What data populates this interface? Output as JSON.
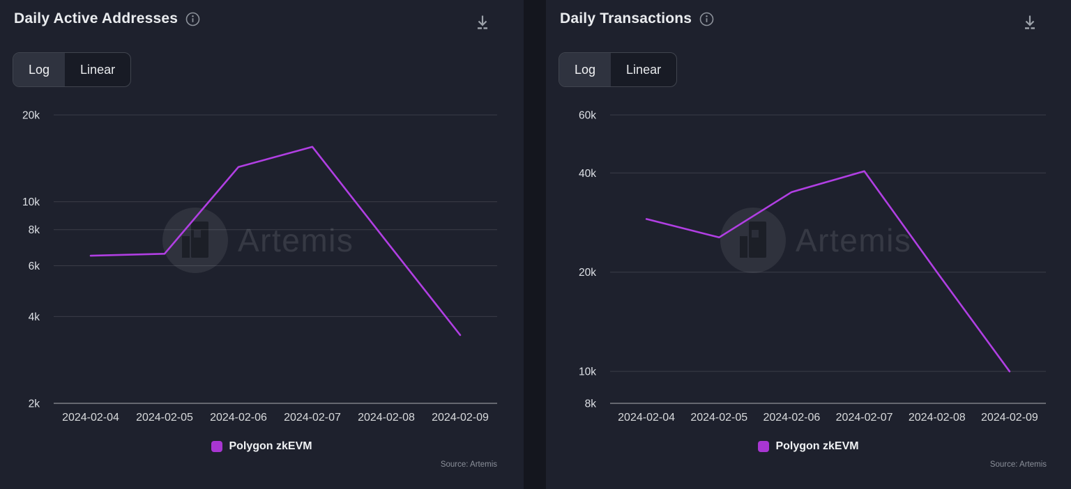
{
  "page": {
    "background": "#14161e",
    "panel_background": "#1e212d",
    "accent_purple": "#b13fe3",
    "legend_swatch_color": "#a836d2",
    "gridline_color": "rgba(255,255,255,0.13)",
    "axis_line_color": "rgba(255,255,255,0.32)"
  },
  "watermark": {
    "text": "Artemis",
    "logo": "artemis-circle-logo"
  },
  "panels": [
    {
      "title": "Daily Active Addresses",
      "toggle": {
        "log": "Log",
        "linear": "Linear",
        "selected": "Log"
      },
      "legend_label": "Polygon zkEVM",
      "legend_color": "#a836d2",
      "source": "Source: Artemis"
    },
    {
      "title": "Daily Transactions",
      "toggle": {
        "log": "Log",
        "linear": "Linear",
        "selected": "Log"
      },
      "legend_label": "Polygon zkEVM",
      "legend_color": "#a836d2",
      "source": "Source: Artemis"
    }
  ],
  "chart_data": [
    {
      "type": "line",
      "title": "Daily Active Addresses",
      "yscale": "log",
      "grid": true,
      "legend_position": "bottom",
      "x": [
        "2024-02-04",
        "2024-02-05",
        "2024-02-06",
        "2024-02-07",
        "2024-02-08",
        "2024-02-09"
      ],
      "series": [
        {
          "name": "Polygon zkEVM",
          "color": "#b13fe3",
          "values": [
            6500,
            6600,
            13200,
            15500,
            7300,
            3450
          ]
        }
      ],
      "yticks": [
        {
          "label": "20k",
          "value": 20000
        },
        {
          "label": "10k",
          "value": 10000
        },
        {
          "label": "8k",
          "value": 8000
        },
        {
          "label": "6k",
          "value": 6000
        },
        {
          "label": "4k",
          "value": 4000
        },
        {
          "label": "2k",
          "value": 2000
        }
      ],
      "ylim": [
        2000,
        20000
      ],
      "source": "Source: Artemis"
    },
    {
      "type": "line",
      "title": "Daily Transactions",
      "yscale": "log",
      "grid": true,
      "legend_position": "bottom",
      "x": [
        "2024-02-04",
        "2024-02-05",
        "2024-02-06",
        "2024-02-07",
        "2024-02-08",
        "2024-02-09"
      ],
      "series": [
        {
          "name": "Polygon zkEVM",
          "color": "#b13fe3",
          "values": [
            29000,
            25500,
            35000,
            40500,
            20000,
            10000
          ]
        }
      ],
      "yticks": [
        {
          "label": "60k",
          "value": 60000
        },
        {
          "label": "40k",
          "value": 40000
        },
        {
          "label": "20k",
          "value": 20000
        },
        {
          "label": "10k",
          "value": 10000
        },
        {
          "label": "8k",
          "value": 8000
        }
      ],
      "ylim": [
        8000,
        60000
      ],
      "source": "Source: Artemis"
    }
  ]
}
